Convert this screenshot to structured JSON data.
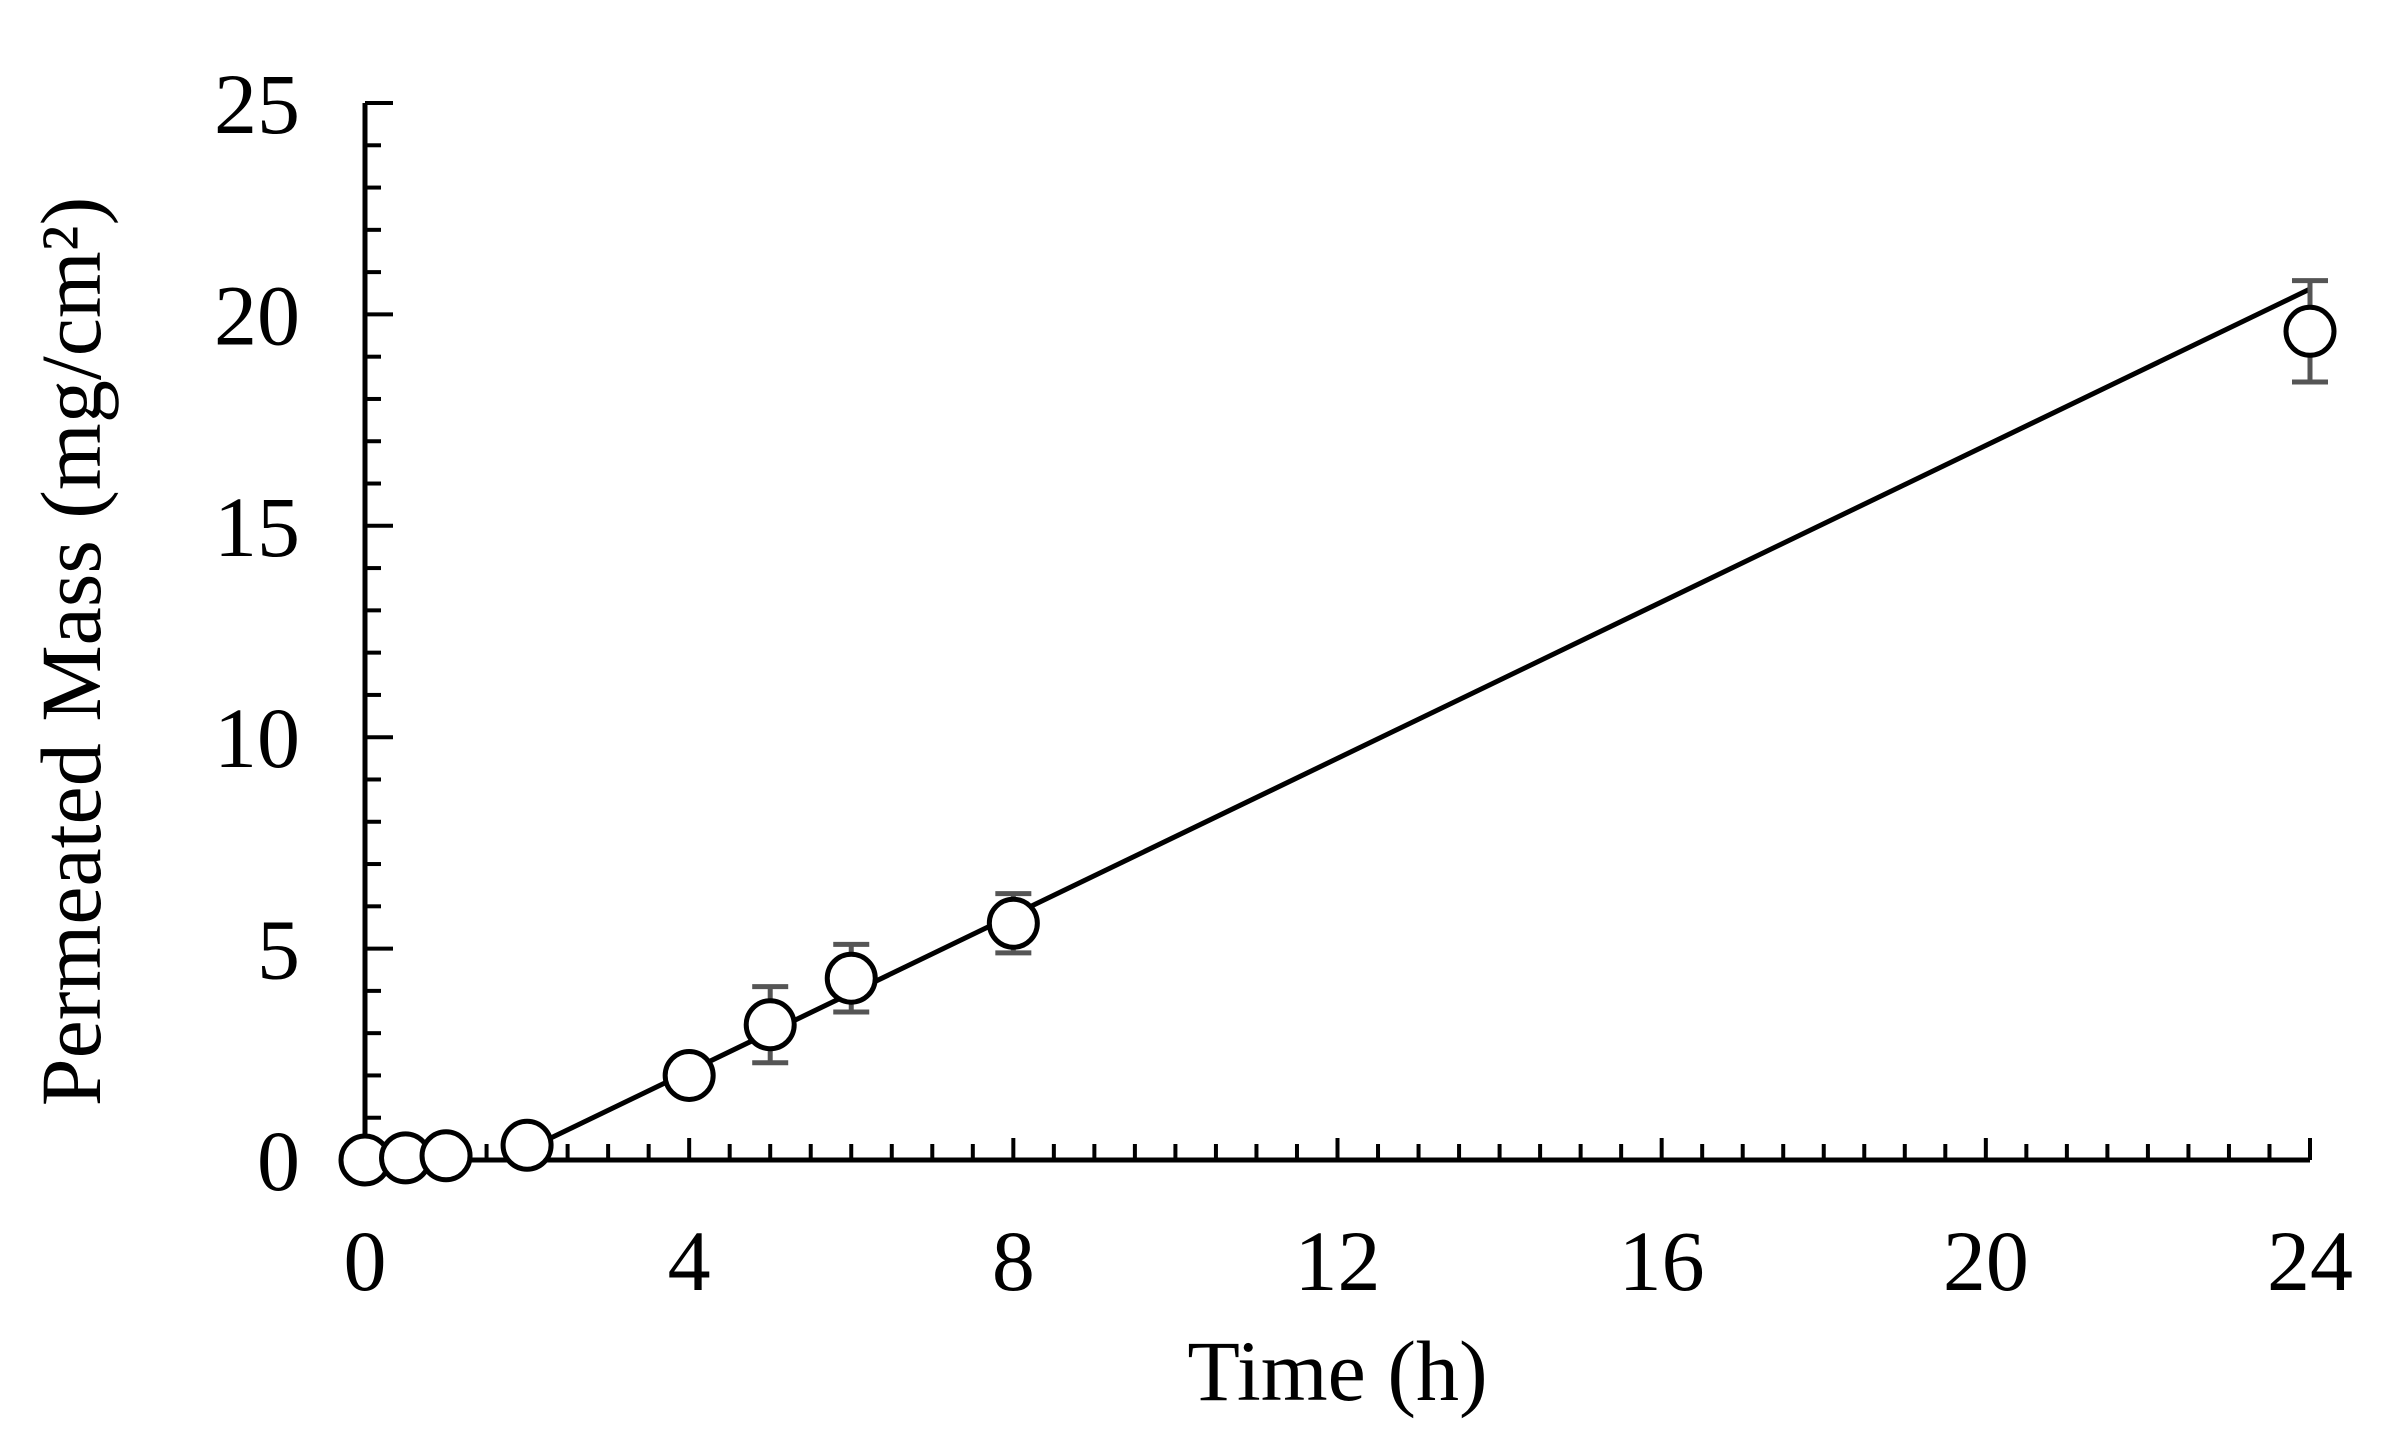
{
  "chart_data": {
    "type": "scatter",
    "title": "",
    "xlabel": "Time (h)",
    "ylabel": "Permeated Mass (mg/cm²)",
    "xlim": [
      0,
      24
    ],
    "ylim": [
      0,
      25
    ],
    "x_major_ticks": [
      0,
      4,
      8,
      12,
      16,
      20,
      24
    ],
    "x_minor_step": 0.5,
    "y_major_ticks": [
      0,
      5,
      10,
      15,
      20,
      25
    ],
    "y_minor_step": 1,
    "grid": false,
    "x_tick_labels": [
      "0",
      "4",
      "8",
      "12",
      "16",
      "20",
      "24"
    ],
    "y_tick_labels": [
      "0",
      "5",
      "10",
      "15",
      "20",
      "25"
    ],
    "series": [
      {
        "marker": "open-circle",
        "x": [
          0,
          0.5,
          1,
          2,
          4,
          5,
          6,
          8,
          24
        ],
        "y": [
          0,
          0.05,
          0.1,
          0.35,
          2.0,
          3.2,
          4.3,
          5.6,
          19.6
        ],
        "error": [
          0,
          0,
          0,
          0,
          0,
          0.9,
          0.8,
          0.7,
          1.2
        ]
      }
    ],
    "fit_line": {
      "x": [
        2,
        24
      ],
      "y": [
        0.25,
        20.6
      ]
    }
  },
  "colors": {
    "axis": "#000000",
    "error_bar": "#555555",
    "marker_fill": "#ffffff",
    "marker_stroke": "#000000"
  }
}
